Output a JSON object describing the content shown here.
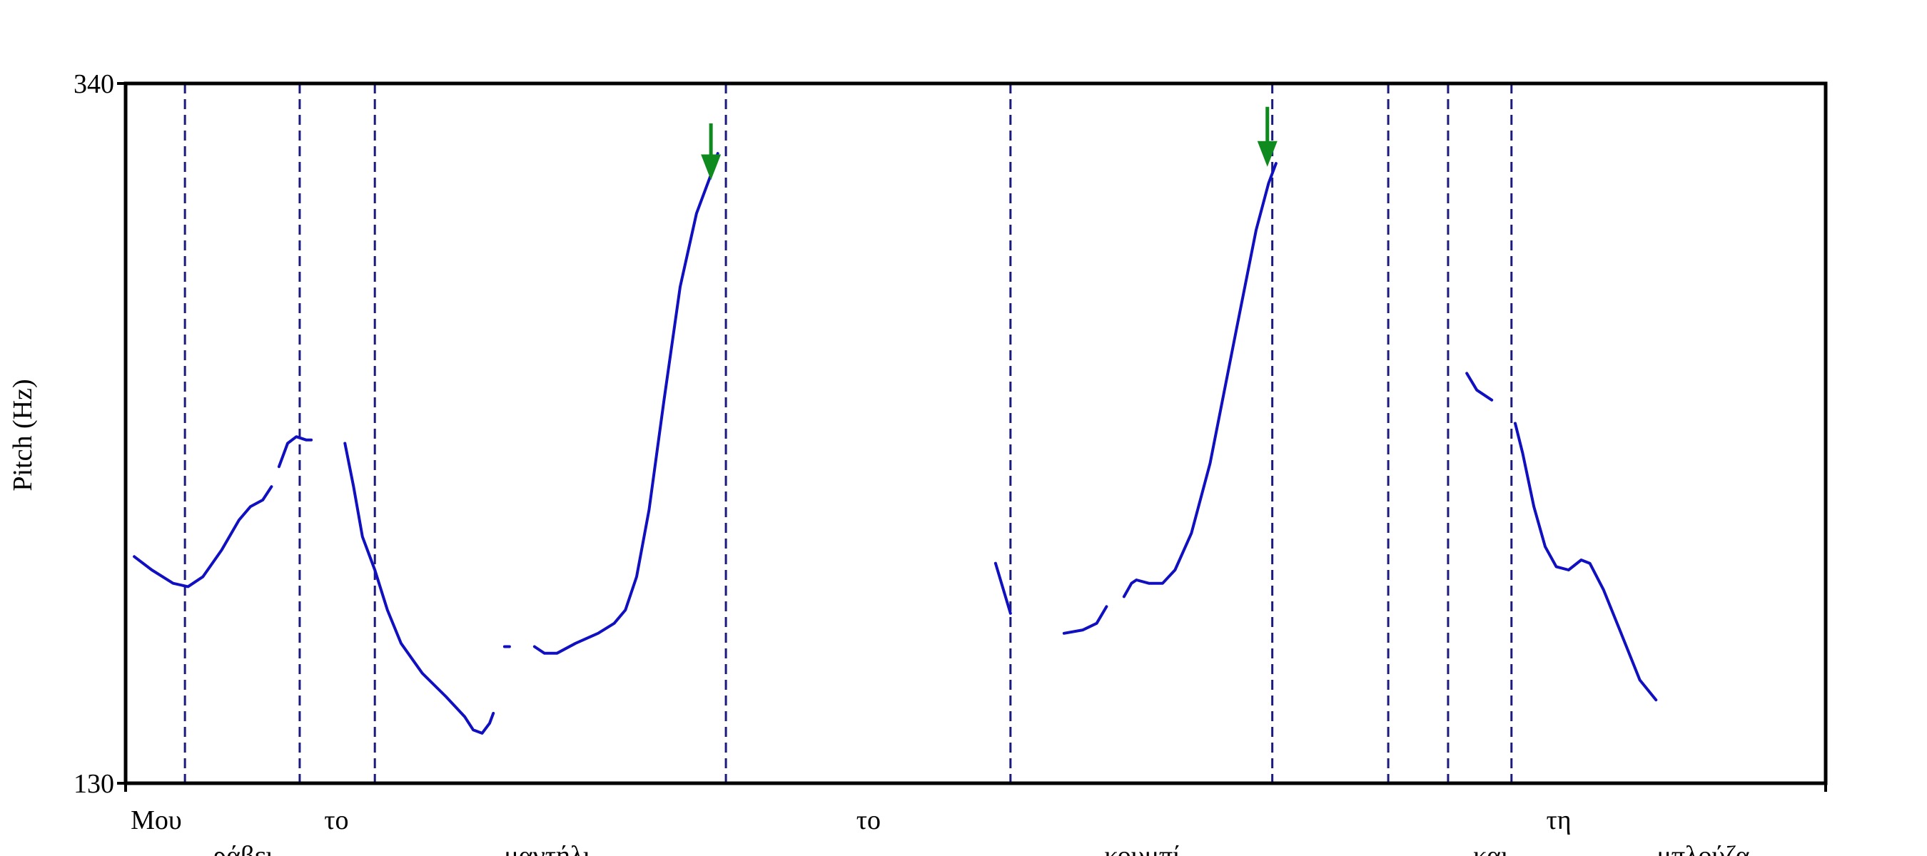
{
  "chart_data": {
    "type": "line",
    "ylabel": "Pitch (Hz)",
    "xlabel": "",
    "ylim": [
      130,
      340
    ],
    "xlim": [
      0,
      1
    ],
    "y_ticks": [
      "130",
      "340"
    ],
    "grid": false,
    "legend": "none",
    "colors": {
      "pitch": "#1010c0",
      "boundary": "#1a1a80",
      "arrow": "#0f8a1e",
      "axis": "#000000"
    },
    "word_boundaries": [
      0.0349,
      0.1024,
      0.1466,
      0.3531,
      0.5205,
      0.6745,
      0.7427,
      0.7779,
      0.8152
    ],
    "words": [
      {
        "text": "Μου",
        "row": 1,
        "x": 0.018
      },
      {
        "text": "ράβει",
        "row": 2,
        "x": 0.069
      },
      {
        "text": "το",
        "row": 1,
        "x": 0.124
      },
      {
        "text": "μαντήλι,",
        "row": 2,
        "x": 0.25
      },
      {
        "text": "το",
        "row": 1,
        "x": 0.437
      },
      {
        "text": "κουμπί",
        "row": 2,
        "x": 0.598
      },
      {
        "text": "και",
        "row": 2,
        "x": 0.803
      },
      {
        "text": "τη",
        "row": 1,
        "x": 0.843
      },
      {
        "text": "μπλούζα.",
        "row": 2,
        "x": 0.93
      }
    ],
    "arrows": [
      {
        "x": 0.3443,
        "y_top": 328,
        "y_tip": 311
      },
      {
        "x": 0.6716,
        "y_top": 333,
        "y_tip": 315
      }
    ],
    "series": [
      {
        "points": [
          [
            0.0051,
            198
          ],
          [
            0.0154,
            194
          ],
          [
            0.0279,
            190
          ],
          [
            0.0367,
            189
          ],
          [
            0.0455,
            192
          ],
          [
            0.0565,
            200
          ],
          [
            0.0667,
            209
          ],
          [
            0.0734,
            213
          ],
          [
            0.0807,
            215
          ],
          [
            0.0858,
            219
          ]
        ]
      },
      {
        "points": [
          [
            0.0902,
            225
          ],
          [
            0.0953,
            232
          ],
          [
            0.1004,
            234
          ],
          [
            0.1063,
            233
          ],
          [
            0.1092,
            233
          ]
        ]
      },
      {
        "points": [
          [
            0.129,
            232
          ],
          [
            0.1341,
            219
          ],
          [
            0.1393,
            204
          ],
          [
            0.1466,
            194
          ],
          [
            0.154,
            182
          ],
          [
            0.162,
            172
          ],
          [
            0.1745,
            163
          ],
          [
            0.1884,
            156
          ],
          [
            0.1994,
            150
          ],
          [
            0.2045,
            146
          ],
          [
            0.2097,
            145
          ],
          [
            0.2141,
            148
          ],
          [
            0.2163,
            151
          ]
        ]
      },
      {
        "points": [
          [
            0.2229,
            171
          ],
          [
            0.2258,
            171
          ]
        ]
      },
      {
        "points": [
          [
            0.2405,
            171
          ],
          [
            0.2464,
            169
          ],
          [
            0.2537,
            169
          ],
          [
            0.2647,
            172
          ],
          [
            0.2779,
            175
          ],
          [
            0.2874,
            178
          ],
          [
            0.294,
            182
          ],
          [
            0.3006,
            192
          ],
          [
            0.3079,
            212
          ],
          [
            0.3167,
            245
          ],
          [
            0.3262,
            279
          ],
          [
            0.3358,
            301
          ],
          [
            0.3446,
            313
          ],
          [
            0.3483,
            319
          ]
        ]
      },
      {
        "points": [
          [
            0.5117,
            196
          ],
          [
            0.5205,
            181
          ]
        ]
      },
      {
        "points": [
          [
            0.552,
            175
          ],
          [
            0.5631,
            176
          ],
          [
            0.5712,
            178
          ],
          [
            0.577,
            183
          ]
        ]
      },
      {
        "points": [
          [
            0.5873,
            186
          ],
          [
            0.5917,
            190
          ],
          [
            0.5946,
            191
          ],
          [
            0.6019,
            190
          ],
          [
            0.61,
            190
          ],
          [
            0.6173,
            194
          ],
          [
            0.6269,
            205
          ],
          [
            0.6379,
            226
          ],
          [
            0.6533,
            266
          ],
          [
            0.665,
            296
          ],
          [
            0.6723,
            310
          ],
          [
            0.6767,
            316
          ]
        ]
      },
      {
        "points": [
          [
            0.7889,
            253
          ],
          [
            0.7948,
            248
          ],
          [
            0.8036,
            245
          ]
        ]
      },
      {
        "points": [
          [
            0.8174,
            238
          ],
          [
            0.8218,
            229
          ],
          [
            0.8284,
            213
          ],
          [
            0.835,
            201
          ],
          [
            0.8415,
            195
          ],
          [
            0.8488,
            194
          ],
          [
            0.8562,
            197
          ],
          [
            0.8613,
            196
          ],
          [
            0.8694,
            188
          ],
          [
            0.8797,
            175
          ],
          [
            0.8907,
            161
          ],
          [
            0.9002,
            155
          ]
        ]
      }
    ]
  }
}
